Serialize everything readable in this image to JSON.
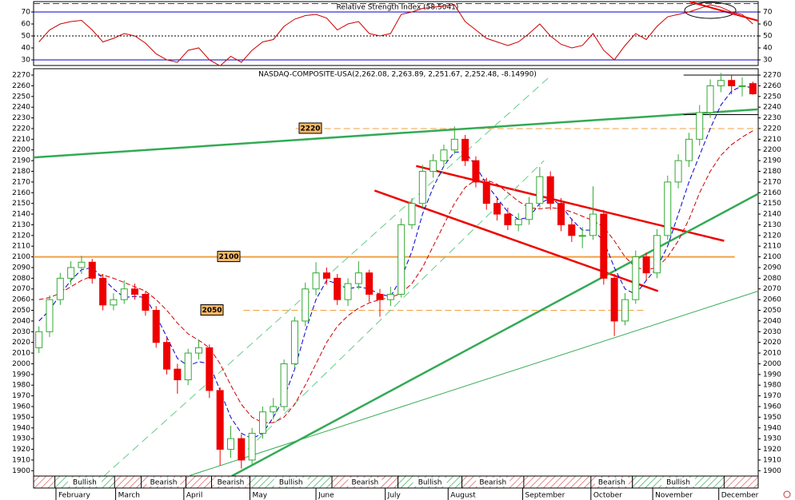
{
  "chart_data": [
    {
      "type": "line",
      "title": "Relative Strength Index (58.5041)",
      "xlim": [
        0,
        68
      ],
      "ylim": [
        25.3,
        78.7
      ],
      "yticks": [
        30,
        40,
        50,
        60,
        70
      ],
      "reference_lines": [
        {
          "value": 70,
          "color": "#0000cc",
          "style": "solid"
        },
        {
          "value": 30,
          "color": "#0000cc",
          "style": "solid"
        },
        {
          "value": 50,
          "color": "#000000",
          "style": "dotted"
        },
        {
          "value": 77,
          "color": "#cc0000",
          "style": "dashed"
        }
      ],
      "series": [
        {
          "color": "#cc0000",
          "values": [
            45,
            55,
            60,
            62,
            63,
            55,
            45,
            48,
            52,
            50,
            44,
            35,
            30,
            28,
            38,
            40,
            30,
            25,
            33,
            28,
            38,
            45,
            47,
            58,
            64,
            67,
            68,
            65,
            55,
            60,
            62,
            52,
            50,
            52,
            68,
            70,
            73,
            74,
            75,
            76,
            62,
            55,
            48,
            45,
            42,
            45,
            52,
            60,
            50,
            43,
            40,
            42,
            52,
            38,
            30,
            42,
            52,
            47,
            58,
            66,
            68,
            70,
            73,
            76,
            74,
            70,
            68,
            60
          ]
        }
      ]
    },
    {
      "type": "candlestick",
      "title": "NASDAQ-COMPOSITE-USA(2,262.08, 2,263.89, 2,251.67, 2,252.48, -8.14990)",
      "xlim": [
        0,
        68
      ],
      "ylim": [
        1895,
        2276
      ],
      "yticks": [
        1900,
        1910,
        1920,
        1930,
        1940,
        1950,
        1960,
        1970,
        1980,
        1990,
        2000,
        2010,
        2020,
        2030,
        2040,
        2050,
        2060,
        2070,
        2080,
        2090,
        2100,
        2110,
        2120,
        2130,
        2140,
        2150,
        2160,
        2170,
        2180,
        2190,
        2200,
        2210,
        2220,
        2230,
        2240,
        2250,
        2260,
        2270
      ],
      "xticks": [
        {
          "value": 2.1,
          "label": "February"
        },
        {
          "value": 7.7,
          "label": "March"
        },
        {
          "value": 14.1,
          "label": "April"
        },
        {
          "value": 20.3,
          "label": "May"
        },
        {
          "value": 26.5,
          "label": "June"
        },
        {
          "value": 33,
          "label": "July"
        },
        {
          "value": 38.9,
          "label": "August"
        },
        {
          "value": 45.9,
          "label": "September"
        },
        {
          "value": 52.3,
          "label": "October"
        },
        {
          "value": 58.1,
          "label": "November"
        },
        {
          "value": 64.3,
          "label": "December"
        }
      ],
      "up_color": "#33aa33",
      "down_color": "#ee0000",
      "candles": [
        [
          2015,
          2035,
          2010,
          2030
        ],
        [
          2030,
          2064,
          2025,
          2060
        ],
        [
          2060,
          2085,
          2055,
          2080
        ],
        [
          2080,
          2096,
          2074,
          2090
        ],
        [
          2090,
          2101,
          2084,
          2095
        ],
        [
          2095,
          2098,
          2075,
          2080
        ],
        [
          2080,
          2084,
          2050,
          2055
        ],
        [
          2055,
          2066,
          2050,
          2060
        ],
        [
          2060,
          2078,
          2056,
          2070
        ],
        [
          2070,
          2075,
          2060,
          2065
        ],
        [
          2065,
          2068,
          2045,
          2050
        ],
        [
          2050,
          2054,
          2015,
          2020
        ],
        [
          2020,
          2024,
          1990,
          1995
        ],
        [
          1995,
          2000,
          1972,
          1985
        ],
        [
          1985,
          2014,
          1980,
          2010
        ],
        [
          2010,
          2022,
          2004,
          2015
        ],
        [
          2015,
          2018,
          1968,
          1975
        ],
        [
          1975,
          1978,
          1905,
          1920
        ],
        [
          1920,
          1942,
          1912,
          1930
        ],
        [
          1930,
          1934,
          1902,
          1910
        ],
        [
          1910,
          1940,
          1905,
          1935
        ],
        [
          1935,
          1960,
          1930,
          1955
        ],
        [
          1955,
          1968,
          1948,
          1960
        ],
        [
          1960,
          2004,
          1956,
          2000
        ],
        [
          2000,
          2044,
          1996,
          2040
        ],
        [
          2040,
          2076,
          2035,
          2070
        ],
        [
          2070,
          2095,
          2064,
          2085
        ],
        [
          2085,
          2090,
          2074,
          2080
        ],
        [
          2080,
          2084,
          2055,
          2060
        ],
        [
          2060,
          2080,
          2054,
          2075
        ],
        [
          2075,
          2096,
          2070,
          2085
        ],
        [
          2085,
          2088,
          2058,
          2065
        ],
        [
          2065,
          2070,
          2044,
          2060
        ],
        [
          2060,
          2072,
          2054,
          2065
        ],
        [
          2065,
          2136,
          2062,
          2130
        ],
        [
          2130,
          2155,
          2126,
          2150
        ],
        [
          2150,
          2186,
          2146,
          2180
        ],
        [
          2180,
          2196,
          2174,
          2190
        ],
        [
          2190,
          2205,
          2184,
          2200
        ],
        [
          2200,
          2222,
          2196,
          2210
        ],
        [
          2210,
          2214,
          2185,
          2190
        ],
        [
          2190,
          2194,
          2165,
          2170
        ],
        [
          2170,
          2174,
          2144,
          2150
        ],
        [
          2150,
          2156,
          2134,
          2140
        ],
        [
          2140,
          2146,
          2125,
          2130
        ],
        [
          2130,
          2141,
          2124,
          2135
        ],
        [
          2135,
          2156,
          2130,
          2150
        ],
        [
          2150,
          2184,
          2146,
          2175
        ],
        [
          2175,
          2180,
          2144,
          2150
        ],
        [
          2150,
          2155,
          2124,
          2130
        ],
        [
          2130,
          2136,
          2114,
          2120
        ],
        [
          2120,
          2128,
          2108,
          2120
        ],
        [
          2120,
          2166,
          2116,
          2140
        ],
        [
          2140,
          2144,
          2074,
          2080
        ],
        [
          2080,
          2084,
          2026,
          2040
        ],
        [
          2040,
          2066,
          2036,
          2060
        ],
        [
          2060,
          2106,
          2056,
          2100
        ],
        [
          2100,
          2104,
          2078,
          2085
        ],
        [
          2085,
          2126,
          2080,
          2120
        ],
        [
          2120,
          2176,
          2116,
          2170
        ],
        [
          2170,
          2196,
          2164,
          2190
        ],
        [
          2190,
          2216,
          2184,
          2210
        ],
        [
          2210,
          2242,
          2204,
          2235
        ],
        [
          2235,
          2266,
          2230,
          2260
        ],
        [
          2260,
          2272,
          2254,
          2265
        ],
        [
          2265,
          2270,
          2252,
          2260
        ],
        [
          2260,
          2268,
          2250,
          2260
        ],
        [
          2262.08,
          2263.89,
          2251.67,
          2252.48
        ]
      ],
      "series": [
        {
          "color": "#0000cc",
          "values": [
            2040,
            2050,
            2065,
            2078,
            2088,
            2090,
            2080,
            2070,
            2062,
            2063,
            2062,
            2045,
            2025,
            2005,
            1998,
            2002,
            2000,
            1975,
            1950,
            1935,
            1930,
            1935,
            1950,
            1968,
            1995,
            2030,
            2060,
            2078,
            2075,
            2070,
            2072,
            2070,
            2065,
            2063,
            2080,
            2105,
            2140,
            2165,
            2185,
            2198,
            2198,
            2185,
            2168,
            2155,
            2142,
            2135,
            2137,
            2150,
            2155,
            2148,
            2135,
            2125,
            2125,
            2115,
            2090,
            2070,
            2065,
            2078,
            2090,
            2110,
            2140,
            2170,
            2195,
            2220,
            2242,
            2255,
            2260,
            2258
          ]
        },
        {
          "color": "#cc0000",
          "values": [
            2060,
            2062,
            2066,
            2072,
            2078,
            2082,
            2083,
            2080,
            2076,
            2072,
            2068,
            2060,
            2050,
            2038,
            2028,
            2022,
            2015,
            2000,
            1980,
            1962,
            1950,
            1945,
            1945,
            1950,
            1962,
            1980,
            2000,
            2020,
            2035,
            2045,
            2052,
            2057,
            2060,
            2062,
            2066,
            2075,
            2090,
            2110,
            2130,
            2150,
            2165,
            2172,
            2172,
            2168,
            2160,
            2152,
            2146,
            2145,
            2146,
            2145,
            2142,
            2138,
            2134,
            2128,
            2115,
            2100,
            2090,
            2088,
            2090,
            2100,
            2115,
            2135,
            2160,
            2180,
            2195,
            2205,
            2212,
            2218
          ]
        }
      ],
      "levels": [
        {
          "value": 2220,
          "from": 24.6,
          "to": 68,
          "style": "dashed",
          "color": "#f0a040"
        },
        {
          "value": 2100,
          "from": 0,
          "to": 65.8,
          "style": "solid",
          "color": "#f0a040"
        },
        {
          "value": 2050,
          "from": 19.7,
          "to": 57.3,
          "style": "dashed",
          "color": "#f0a040"
        }
      ],
      "trendlines": [
        {
          "color": "#ee0000",
          "width": 2.5,
          "x": [
            35.9,
            64.8
          ],
          "y": [
            2185,
            2115
          ]
        },
        {
          "color": "#ee0000",
          "width": 2.5,
          "x": [
            32.0,
            58.6
          ],
          "y": [
            2162,
            2068
          ]
        },
        {
          "color": "#33aa55",
          "width": 2.5,
          "x": [
            0,
            68
          ],
          "y": [
            2193,
            2238
          ]
        },
        {
          "color": "#33aa55",
          "width": 2.5,
          "x": [
            18.6,
            68
          ],
          "y": [
            1895,
            2159
          ]
        },
        {
          "color": "#33aa55",
          "width": 1,
          "x": [
            14.5,
            68
          ],
          "y": [
            1895,
            2068
          ]
        },
        {
          "color": "#66cc88",
          "width": 1,
          "dash": true,
          "x": [
            6.6,
            48.6
          ],
          "y": [
            1895,
            2270
          ]
        },
        {
          "color": "#66cc88",
          "width": 1,
          "dash": true,
          "x": [
            20.1,
            47.9
          ],
          "y": [
            1920,
            2190
          ]
        },
        {
          "color": "#000000",
          "width": 1,
          "x": [
            61,
            68
          ],
          "y": [
            2270,
            2270
          ]
        },
        {
          "color": "#000000",
          "width": 1,
          "x": [
            61,
            68
          ],
          "y": [
            2233,
            2233
          ]
        }
      ],
      "signals": [
        {
          "label": "Bullish",
          "start": 2.0,
          "end": 7.6,
          "kind": "bull"
        },
        {
          "label": "Bearish",
          "start": 10.1,
          "end": 14.3,
          "kind": "bear"
        },
        {
          "label": "Bearish",
          "start": 16.7,
          "end": 20.3,
          "kind": "bear"
        },
        {
          "label": "Bullish",
          "start": 20.3,
          "end": 28.0,
          "kind": "bull"
        },
        {
          "label": "Bearish",
          "start": 28.0,
          "end": 34.2,
          "kind": "bear"
        },
        {
          "label": "Bullish",
          "start": 34.2,
          "end": 40.2,
          "kind": "bull"
        },
        {
          "label": "Bearish",
          "start": 40.2,
          "end": 46.0,
          "kind": "bear"
        },
        {
          "label": "Bearish",
          "start": 52.3,
          "end": 56.2,
          "kind": "bear"
        },
        {
          "label": "Bullish",
          "start": 56.2,
          "end": 64.8,
          "kind": "bull"
        }
      ]
    }
  ]
}
